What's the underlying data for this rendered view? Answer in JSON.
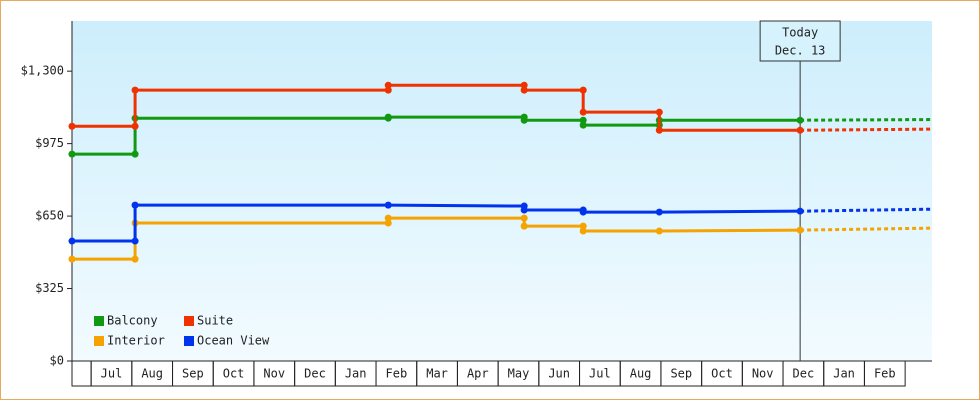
{
  "chart_data": {
    "type": "line",
    "xlim": [
      -0.47,
      20.66
    ],
    "ylim": [
      0,
      1525
    ],
    "yticks": [
      {
        "value": 0,
        "label": "$0"
      },
      {
        "value": 325,
        "label": "$325"
      },
      {
        "value": 650,
        "label": "$650"
      },
      {
        "value": 975,
        "label": "$975"
      },
      {
        "value": 1300,
        "label": "$1,300"
      }
    ],
    "xticks": [
      {
        "value": 0.5,
        "label": "Jul"
      },
      {
        "value": 1.5,
        "label": "Aug"
      },
      {
        "value": 2.5,
        "label": "Sep"
      },
      {
        "value": 3.5,
        "label": "Oct"
      },
      {
        "value": 4.5,
        "label": "Nov"
      },
      {
        "value": 5.5,
        "label": "Dec"
      },
      {
        "value": 6.5,
        "label": "Jan"
      },
      {
        "value": 7.5,
        "label": "Feb"
      },
      {
        "value": 8.5,
        "label": "Mar"
      },
      {
        "value": 9.5,
        "label": "Apr"
      },
      {
        "value": 10.5,
        "label": "May"
      },
      {
        "value": 11.5,
        "label": "Jun"
      },
      {
        "value": 12.5,
        "label": "Jul"
      },
      {
        "value": 13.5,
        "label": "Aug"
      },
      {
        "value": 14.5,
        "label": "Sep"
      },
      {
        "value": 15.5,
        "label": "Oct"
      },
      {
        "value": 16.5,
        "label": "Nov"
      },
      {
        "value": 17.5,
        "label": "Dec"
      },
      {
        "value": 18.5,
        "label": "Jan"
      },
      {
        "value": 19.5,
        "label": "Feb"
      }
    ],
    "annotation": {
      "x": 17.42,
      "lines": [
        "Today",
        "Dec. 13"
      ]
    },
    "series": [
      {
        "name": "Balcony",
        "color": "#119911",
        "x": [
          -0.47,
          1.08,
          1.08,
          7.3,
          7.3,
          10.64,
          10.64,
          12.09,
          12.09,
          13.96,
          13.96,
          17.42,
          20.66
        ],
        "values": [
          928,
          928,
          1089,
          1089,
          1094,
          1094,
          1080,
          1080,
          1058,
          1058,
          1080,
          1080,
          1083
        ]
      },
      {
        "name": "Suite",
        "color": "#ee3300",
        "x": [
          -0.47,
          1.08,
          1.08,
          7.3,
          7.3,
          10.64,
          10.64,
          12.09,
          12.09,
          13.96,
          13.96,
          17.42,
          20.66
        ],
        "values": [
          1053,
          1053,
          1215,
          1215,
          1237,
          1237,
          1215,
          1215,
          1116,
          1116,
          1035,
          1035,
          1040
        ]
      },
      {
        "name": "Interior",
        "color": "#f5a300",
        "x": [
          -0.47,
          1.08,
          1.08,
          7.3,
          7.3,
          10.64,
          10.64,
          12.09,
          12.09,
          13.96,
          17.42,
          20.66
        ],
        "values": [
          457,
          457,
          619,
          619,
          641,
          641,
          605,
          605,
          583,
          583,
          587,
          596
        ]
      },
      {
        "name": "Ocean View",
        "color": "#0033ee",
        "x": [
          -0.47,
          1.08,
          1.08,
          7.3,
          10.64,
          10.64,
          12.09,
          12.09,
          13.96,
          17.42,
          20.66
        ],
        "values": [
          538,
          538,
          699,
          699,
          695,
          677,
          677,
          668,
          668,
          672,
          681
        ]
      }
    ]
  }
}
